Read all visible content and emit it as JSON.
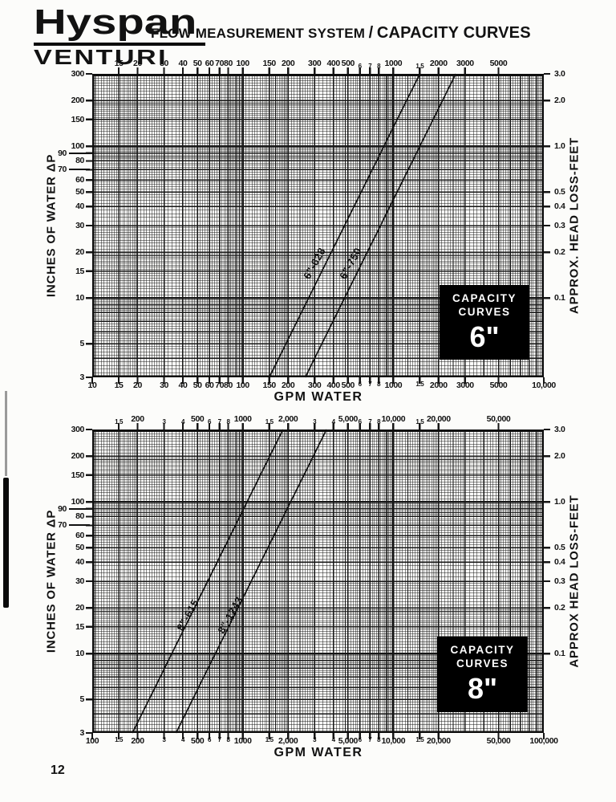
{
  "page": {
    "number": "12"
  },
  "header": {
    "logo_line1": "Hyspan",
    "logo_line2": "VENTURI",
    "title_prefix": "FLOW MEASUREMENT SYSTEM",
    "title_slash": "/",
    "title_emphasis": "CAPACITY CURVES"
  },
  "chart_data": [
    {
      "type": "line",
      "xlabel": "GPM WATER",
      "ylabel_left": "INCHES OF WATER ΔP",
      "ylabel_right": "APPROX. HEAD LOSS-FEET",
      "x_range": [
        10,
        10000
      ],
      "y_range": [
        3,
        300
      ],
      "grid": "log-log",
      "badge": {
        "line1": "CAPACITY",
        "line2": "CURVES",
        "size": "6\""
      },
      "x_ticks_top": [
        {
          "v": 15,
          "t": "15"
        },
        {
          "v": 20,
          "t": "20"
        },
        {
          "v": 30,
          "t": "30"
        },
        {
          "v": 40,
          "t": "40"
        },
        {
          "v": 50,
          "t": "50"
        },
        {
          "v": 60,
          "t": "60"
        },
        {
          "v": 70,
          "t": "70"
        },
        {
          "v": 80,
          "t": "80"
        },
        {
          "v": 100,
          "t": "100"
        },
        {
          "v": 150,
          "t": "150"
        },
        {
          "v": 200,
          "t": "200"
        },
        {
          "v": 300,
          "t": "300"
        },
        {
          "v": 400,
          "t": "400"
        },
        {
          "v": 500,
          "t": "500"
        },
        {
          "v": 600,
          "t": "6",
          "s": true
        },
        {
          "v": 700,
          "t": "7",
          "s": true
        },
        {
          "v": 800,
          "t": "8",
          "s": true
        },
        {
          "v": 1000,
          "t": "1000"
        },
        {
          "v": 1500,
          "t": "1.5",
          "s": true
        },
        {
          "v": 2000,
          "t": "2000"
        },
        {
          "v": 3000,
          "t": "3000"
        },
        {
          "v": 5000,
          "t": "5000"
        }
      ],
      "x_ticks_bottom": [
        {
          "v": 10,
          "t": "10"
        },
        {
          "v": 15,
          "t": "15"
        },
        {
          "v": 20,
          "t": "20"
        },
        {
          "v": 30,
          "t": "30"
        },
        {
          "v": 40,
          "t": "40"
        },
        {
          "v": 50,
          "t": "50"
        },
        {
          "v": 60,
          "t": "60"
        },
        {
          "v": 70,
          "t": "70"
        },
        {
          "v": 80,
          "t": "80"
        },
        {
          "v": 100,
          "t": "100"
        },
        {
          "v": 150,
          "t": "150"
        },
        {
          "v": 200,
          "t": "200"
        },
        {
          "v": 300,
          "t": "300"
        },
        {
          "v": 400,
          "t": "400"
        },
        {
          "v": 500,
          "t": "500"
        },
        {
          "v": 600,
          "t": "6",
          "s": true
        },
        {
          "v": 700,
          "t": "7",
          "s": true
        },
        {
          "v": 800,
          "t": "8",
          "s": true
        },
        {
          "v": 1000,
          "t": "1000"
        },
        {
          "v": 1500,
          "t": "1.5",
          "s": true
        },
        {
          "v": 2000,
          "t": "2000"
        },
        {
          "v": 3000,
          "t": "3000"
        },
        {
          "v": 5000,
          "t": "5000"
        },
        {
          "v": 10000,
          "t": "10,000"
        }
      ],
      "y_ticks_left": [
        {
          "v": 300,
          "t": "300"
        },
        {
          "v": 200,
          "t": "200"
        },
        {
          "v": 150,
          "t": "150"
        },
        {
          "v": 100,
          "t": "100"
        },
        {
          "v": 90,
          "t": "90",
          "offset": true
        },
        {
          "v": 80,
          "t": "80"
        },
        {
          "v": 70,
          "t": "70",
          "offset": true
        },
        {
          "v": 60,
          "t": "60"
        },
        {
          "v": 50,
          "t": "50"
        },
        {
          "v": 40,
          "t": "40"
        },
        {
          "v": 30,
          "t": "30"
        },
        {
          "v": 20,
          "t": "20"
        },
        {
          "v": 15,
          "t": "15"
        },
        {
          "v": 10,
          "t": "10"
        },
        {
          "v": 5,
          "t": "5"
        },
        {
          "v": 3,
          "t": "3"
        }
      ],
      "y_ticks_right": [
        {
          "v": 300,
          "t": "3.0"
        },
        {
          "v": 200,
          "t": "2.0"
        },
        {
          "v": 100,
          "t": "1.0"
        },
        {
          "v": 50,
          "t": "0.5"
        },
        {
          "v": 40,
          "t": "0.4"
        },
        {
          "v": 30,
          "t": "0.3"
        },
        {
          "v": 20,
          "t": "0.2"
        },
        {
          "v": 10,
          "t": "0.1"
        }
      ],
      "series": [
        {
          "name": "6\"-628",
          "points_gpm_dp": [
            [
              150,
              3
            ],
            [
              1500,
              300
            ]
          ],
          "label_at_gpm_dp": [
            300,
            17
          ]
        },
        {
          "name": "6\"-750",
          "points_gpm_dp": [
            [
              260,
              3
            ],
            [
              2600,
              300
            ]
          ],
          "label_at_gpm_dp": [
            520,
            17
          ]
        }
      ]
    },
    {
      "type": "line",
      "xlabel": "GPM WATER",
      "ylabel_left": "INCHES OF WATER ΔP",
      "ylabel_right": "APPROX HEAD LOSS-FEET",
      "x_range": [
        100,
        100000
      ],
      "y_range": [
        3,
        300
      ],
      "grid": "log-log",
      "badge": {
        "line1": "CAPACITY",
        "line2": "CURVES",
        "size": "8\""
      },
      "x_ticks_top": [
        {
          "v": 150,
          "t": "1.5",
          "s": true
        },
        {
          "v": 200,
          "t": "200"
        },
        {
          "v": 300,
          "t": "3",
          "s": true
        },
        {
          "v": 400,
          "t": "4",
          "s": true
        },
        {
          "v": 500,
          "t": "500"
        },
        {
          "v": 600,
          "t": "6",
          "s": true
        },
        {
          "v": 700,
          "t": "7",
          "s": true
        },
        {
          "v": 800,
          "t": "8",
          "s": true
        },
        {
          "v": 1000,
          "t": "1000"
        },
        {
          "v": 1500,
          "t": "1.5",
          "s": true
        },
        {
          "v": 2000,
          "t": "2,000"
        },
        {
          "v": 3000,
          "t": "3",
          "s": true
        },
        {
          "v": 4000,
          "t": "4",
          "s": true
        },
        {
          "v": 5000,
          "t": "5,000"
        },
        {
          "v": 6000,
          "t": "6",
          "s": true
        },
        {
          "v": 7000,
          "t": "7",
          "s": true
        },
        {
          "v": 8000,
          "t": "8",
          "s": true
        },
        {
          "v": 10000,
          "t": "10,000"
        },
        {
          "v": 15000,
          "t": "1.5",
          "s": true
        },
        {
          "v": 20000,
          "t": "20,000"
        },
        {
          "v": 50000,
          "t": "50,000"
        }
      ],
      "x_ticks_bottom": [
        {
          "v": 100,
          "t": "100"
        },
        {
          "v": 150,
          "t": "1.5",
          "s": true
        },
        {
          "v": 200,
          "t": "200"
        },
        {
          "v": 300,
          "t": "3",
          "s": true
        },
        {
          "v": 400,
          "t": "4",
          "s": true
        },
        {
          "v": 500,
          "t": "500"
        },
        {
          "v": 600,
          "t": "6",
          "s": true
        },
        {
          "v": 700,
          "t": "7",
          "s": true
        },
        {
          "v": 800,
          "t": "8",
          "s": true
        },
        {
          "v": 1000,
          "t": "1000"
        },
        {
          "v": 1500,
          "t": "1.5",
          "s": true
        },
        {
          "v": 2000,
          "t": "2,000"
        },
        {
          "v": 3000,
          "t": "3",
          "s": true
        },
        {
          "v": 4000,
          "t": "4",
          "s": true
        },
        {
          "v": 5000,
          "t": "5,000"
        },
        {
          "v": 6000,
          "t": "6",
          "s": true
        },
        {
          "v": 7000,
          "t": "7",
          "s": true
        },
        {
          "v": 8000,
          "t": "8",
          "s": true
        },
        {
          "v": 10000,
          "t": "10,000"
        },
        {
          "v": 15000,
          "t": "1.5",
          "s": true
        },
        {
          "v": 20000,
          "t": "20,000"
        },
        {
          "v": 50000,
          "t": "50,000"
        },
        {
          "v": 100000,
          "t": "100,000"
        }
      ],
      "y_ticks_left": [
        {
          "v": 300,
          "t": "300"
        },
        {
          "v": 200,
          "t": "200"
        },
        {
          "v": 150,
          "t": "150"
        },
        {
          "v": 100,
          "t": "100"
        },
        {
          "v": 90,
          "t": "90",
          "offset": true
        },
        {
          "v": 80,
          "t": "80"
        },
        {
          "v": 70,
          "t": "70",
          "offset": true
        },
        {
          "v": 60,
          "t": "60"
        },
        {
          "v": 50,
          "t": "50"
        },
        {
          "v": 40,
          "t": "40"
        },
        {
          "v": 30,
          "t": "30"
        },
        {
          "v": 20,
          "t": "20"
        },
        {
          "v": 15,
          "t": "15"
        },
        {
          "v": 10,
          "t": "10"
        },
        {
          "v": 5,
          "t": "5"
        },
        {
          "v": 3,
          "t": "3"
        }
      ],
      "y_ticks_right": [
        {
          "v": 300,
          "t": "3.0"
        },
        {
          "v": 200,
          "t": "2.0"
        },
        {
          "v": 100,
          "t": "1.0"
        },
        {
          "v": 50,
          "t": "0.5"
        },
        {
          "v": 40,
          "t": "0.4"
        },
        {
          "v": 30,
          "t": "0.3"
        },
        {
          "v": 20,
          "t": "0.2"
        },
        {
          "v": 10,
          "t": "0.1"
        }
      ],
      "series": [
        {
          "name": "8\"-615",
          "points_gpm_dp": [
            [
              185,
              3
            ],
            [
              1850,
              300
            ]
          ],
          "label_at_gpm_dp": [
            430,
            18
          ]
        },
        {
          "name": "8\"-1243",
          "points_gpm_dp": [
            [
              360,
              3
            ],
            [
              3600,
              300
            ]
          ],
          "label_at_gpm_dp": [
            830,
            18
          ]
        }
      ]
    }
  ]
}
